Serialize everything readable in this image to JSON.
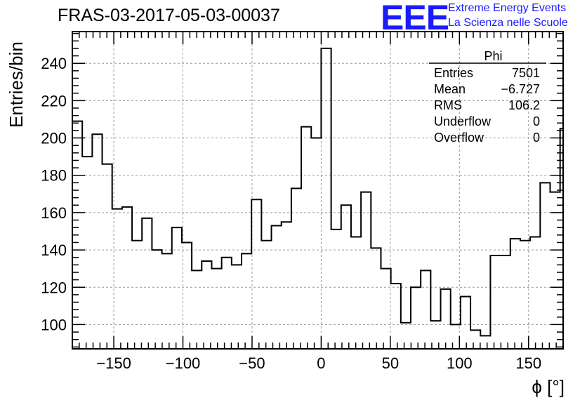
{
  "header": {
    "title": "FRAS-03-2017-05-03-00037",
    "logo": "EEE",
    "org_line1": "Extreme Energy Events",
    "org_line2": "La Scienza nelle Scuole",
    "logo_color": "#1a1aff"
  },
  "stats": {
    "name": "Phi",
    "rows": [
      {
        "label": "Entries",
        "value": "7501"
      },
      {
        "label": "Mean",
        "value": "−6.727"
      },
      {
        "label": "RMS",
        "value": "106.2"
      },
      {
        "label": "Underflow",
        "value": "0"
      },
      {
        "label": "Overflow",
        "value": "0"
      }
    ]
  },
  "chart_data": {
    "type": "bar",
    "histogram": true,
    "title": "FRAS-03-2017-05-03-00037",
    "xlabel": "ϕ [°]",
    "ylabel": "Entries/bin",
    "xlim": [
      -180,
      175
    ],
    "ylim": [
      87,
      257
    ],
    "bin_width": 7.2,
    "xticks": [
      -150,
      -100,
      -50,
      0,
      50,
      100,
      150
    ],
    "xtick_labels": [
      "−150",
      "−100",
      "−50",
      "0",
      "50",
      "100",
      "150"
    ],
    "yticks": [
      100,
      120,
      140,
      160,
      180,
      200,
      220,
      240
    ],
    "grid": true,
    "bin_edges_start": -180,
    "values": [
      209,
      190,
      202,
      186,
      162,
      163,
      145,
      157,
      140,
      138,
      152,
      144,
      129,
      134,
      130,
      136,
      132,
      138,
      167,
      145,
      153,
      155,
      173,
      206,
      200,
      248,
      151,
      164,
      147,
      171,
      141,
      130,
      122,
      101,
      120,
      129,
      102,
      119,
      100,
      115,
      97,
      94,
      137,
      137,
      146,
      145,
      147,
      176,
      171,
      205
    ],
    "line_color": "#000000"
  }
}
